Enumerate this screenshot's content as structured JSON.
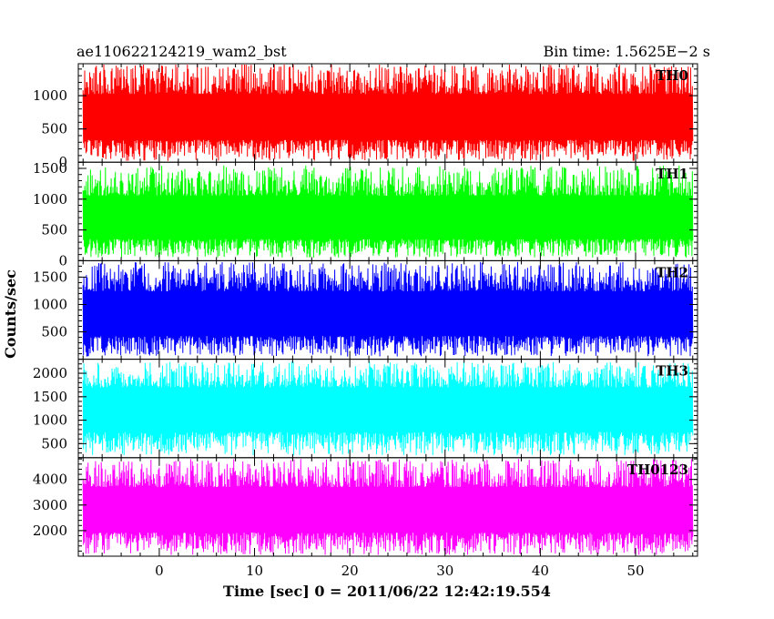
{
  "header": {
    "title": "ae110622124219_wam2_bst",
    "bin_time": "Bin time: 1.5625E−2 s"
  },
  "chart_data": {
    "type": "line",
    "title": "ae110622124219_wam2_bst",
    "xlabel": "Time [sec] 0 = 2011/06/22 12:42:19.554",
    "ylabel": "Counts/sec",
    "xlim": [
      -8.5,
      56.5
    ],
    "x_ticks": [
      0,
      10,
      20,
      30,
      40,
      50
    ],
    "x_tick_labels": [
      "0",
      "10",
      "20",
      "30",
      "40",
      "50"
    ],
    "data_x_range": [
      -8,
      56
    ],
    "bin_time_sec": 0.015625,
    "grid": false,
    "panels": [
      {
        "name": "TH0",
        "color": "#ff0000",
        "ylim": [
          0,
          1480
        ],
        "y_ticks": [
          0,
          500,
          1000
        ],
        "y_tick_labels": [
          "0",
          "500",
          "1000"
        ],
        "mean": 650,
        "min": 20,
        "max": 1480
      },
      {
        "name": "TH1",
        "color": "#00ff00",
        "ylim": [
          0,
          1600
        ],
        "y_ticks": [
          0,
          500,
          1000,
          1500
        ],
        "y_tick_labels": [
          "0",
          "500",
          "1000",
          "1500"
        ],
        "mean": 650,
        "min": 50,
        "max": 1550
      },
      {
        "name": "TH2",
        "color": "#0000ff",
        "ylim": [
          0,
          1800
        ],
        "y_ticks": [
          500,
          1000,
          1500
        ],
        "y_tick_labels": [
          "500",
          "1000",
          "1500"
        ],
        "mean": 800,
        "min": 50,
        "max": 1780
      },
      {
        "name": "TH3",
        "color": "#00ffff",
        "ylim": [
          200,
          2300
        ],
        "y_ticks": [
          500,
          1000,
          1500,
          2000
        ],
        "y_tick_labels": [
          "500",
          "1000",
          "1500",
          "2000"
        ],
        "mean": 1250,
        "min": 250,
        "max": 2250
      },
      {
        "name": "TH0123",
        "color": "#ff00ff",
        "ylim": [
          1000,
          4850
        ],
        "y_ticks": [
          2000,
          3000,
          4000
        ],
        "y_tick_labels": [
          "2000",
          "3000",
          "4000"
        ],
        "mean": 2800,
        "min": 1050,
        "max": 4800
      }
    ]
  }
}
